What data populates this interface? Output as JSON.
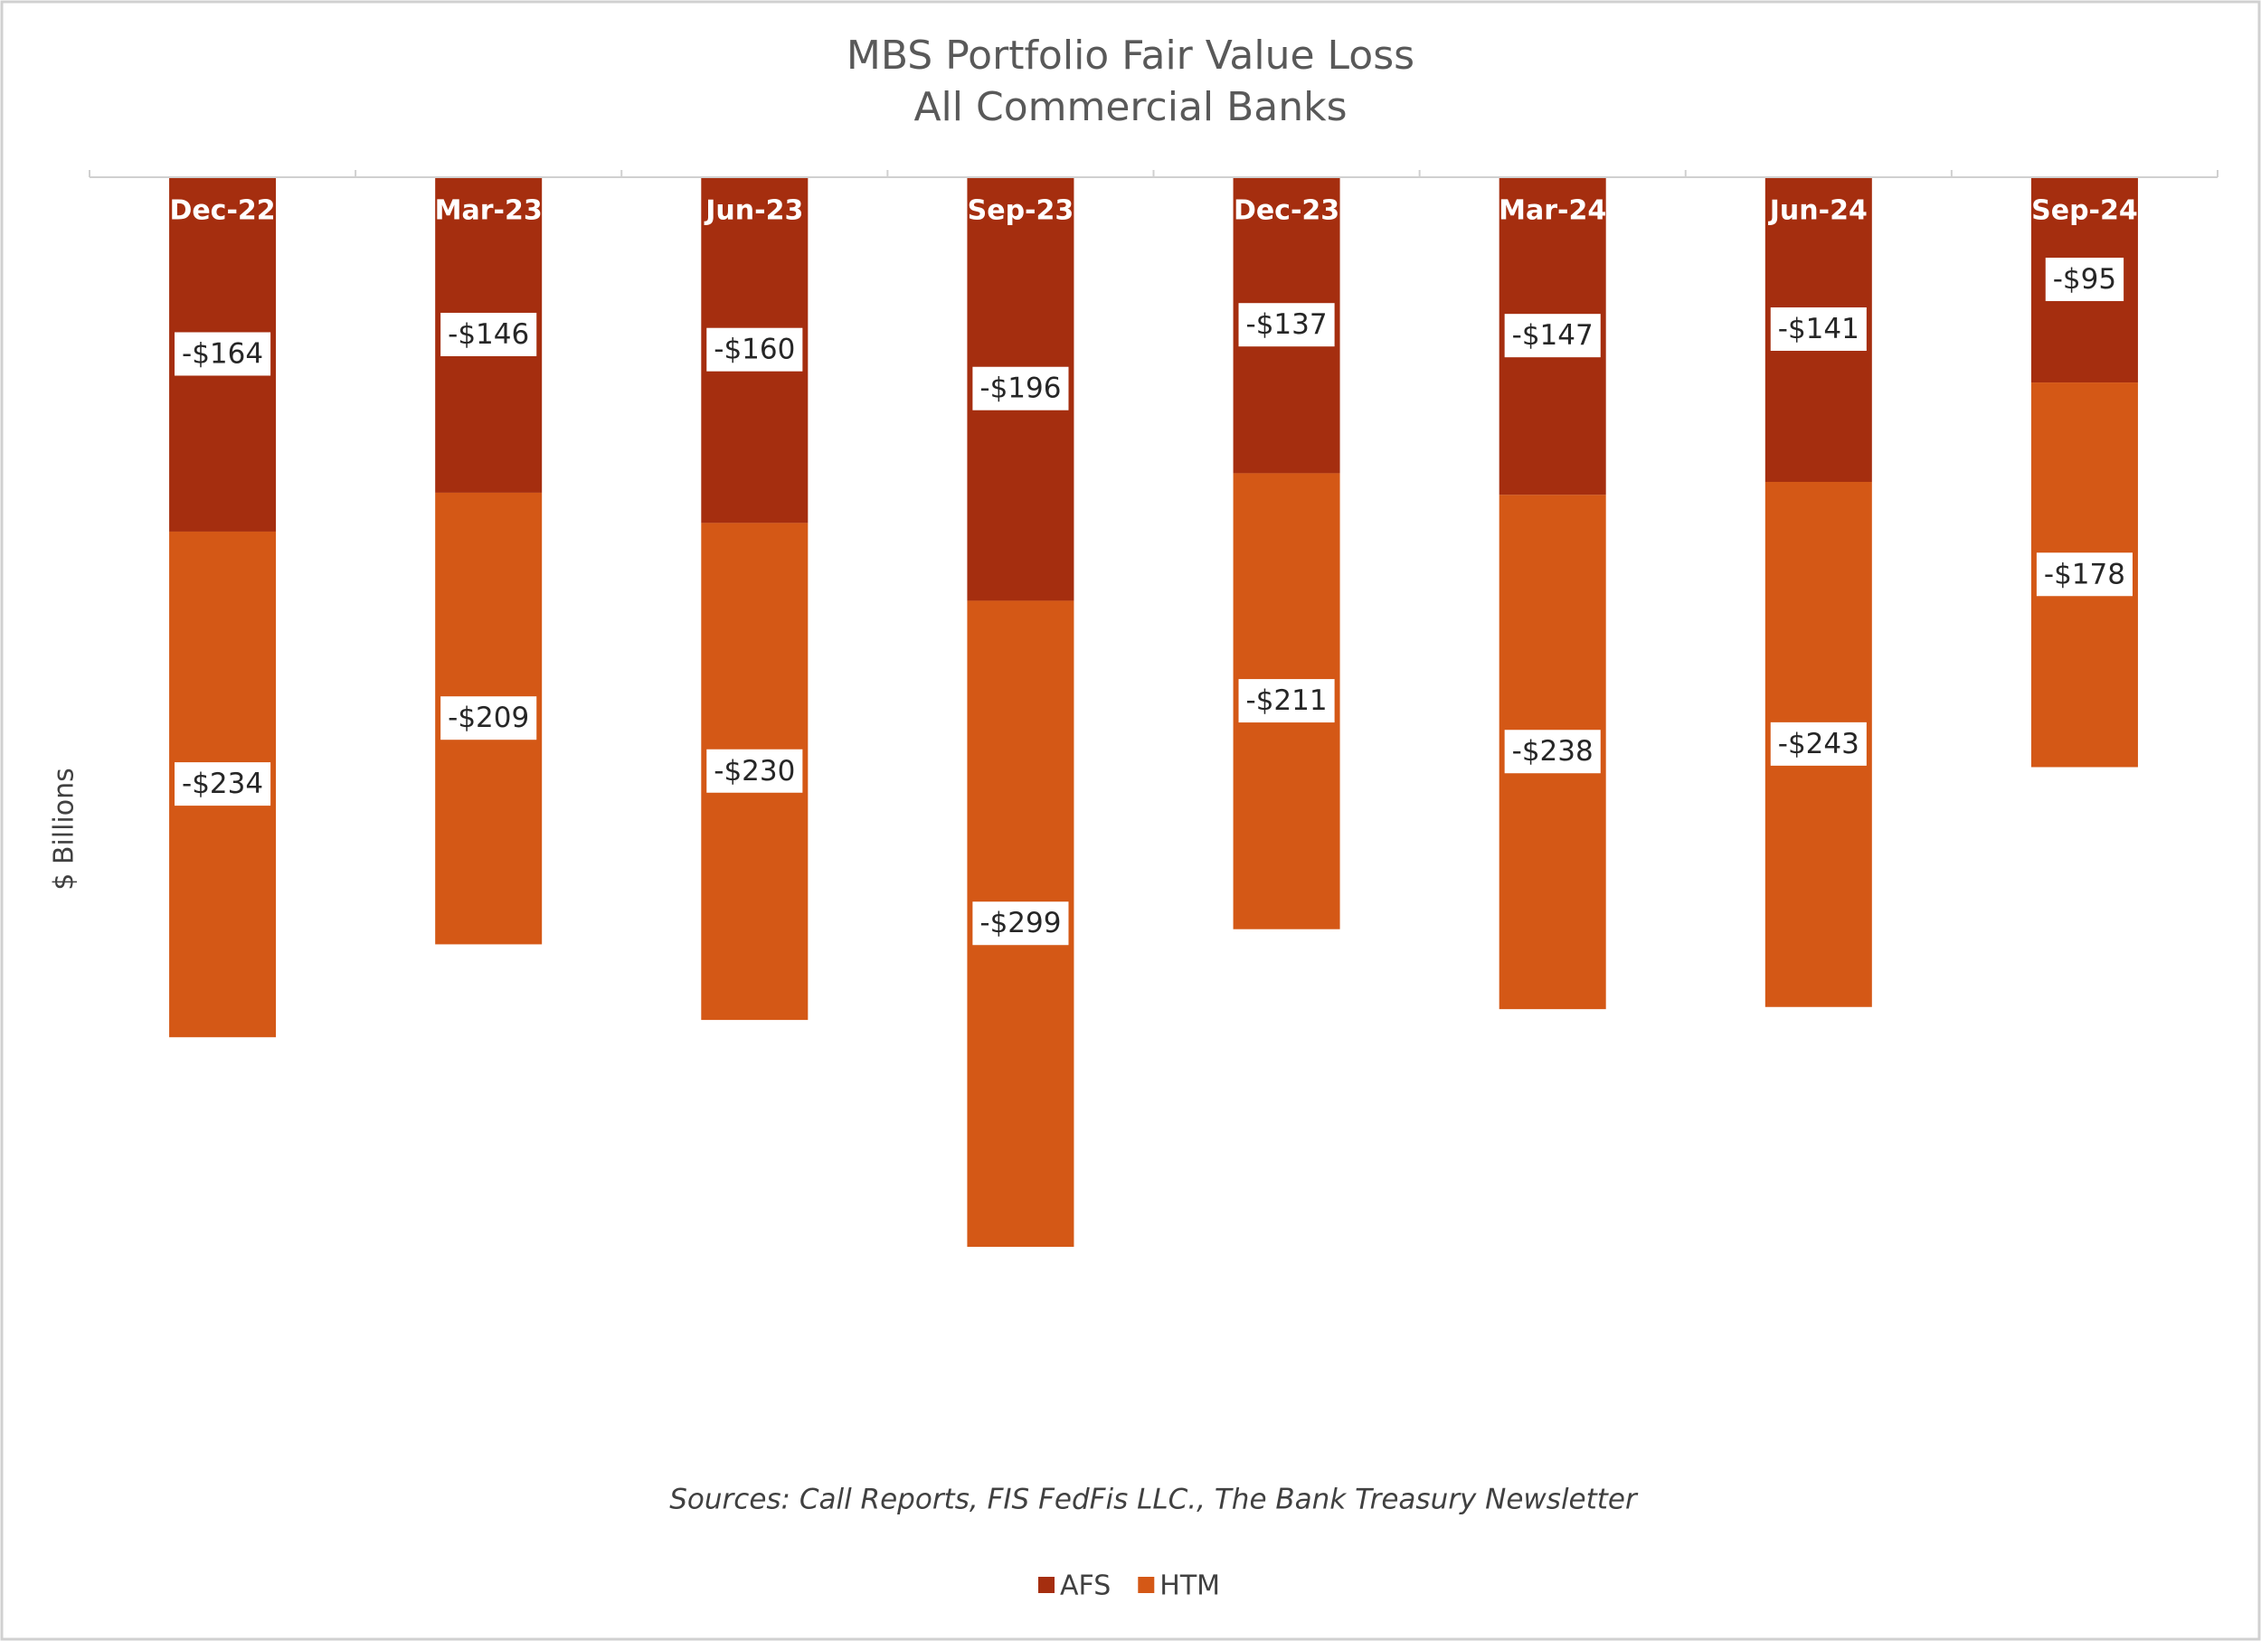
{
  "chart_data": {
    "type": "bar",
    "stacked": true,
    "title": "MBS Portfolio Fair Value Loss",
    "subtitle": "All Commercial Banks",
    "ylabel": "$ Billions",
    "source": "Sources: Call Reports, FIS FedFis LLC., The Bank Treasury Newsletter",
    "categories": [
      "Dec-22",
      "Mar-23",
      "Jun-23",
      "Sep-23",
      "Dec-23",
      "Mar-24",
      "Jun-24",
      "Sep-24"
    ],
    "series": [
      {
        "name": "AFS",
        "color": "#a52e0f",
        "values": [
          -164,
          -146,
          -160,
          -196,
          -137,
          -147,
          -141,
          -95
        ],
        "value_labels": [
          "-$164",
          "-$146",
          "-$160",
          "-$196",
          "-$137",
          "-$147",
          "-$141",
          "-$95"
        ]
      },
      {
        "name": "HTM",
        "color": "#d45816",
        "values": [
          -234,
          -209,
          -230,
          -299,
          -211,
          -238,
          -243,
          -178
        ],
        "value_labels": [
          "-$234",
          "-$209",
          "-$230",
          "-$299",
          "-$211",
          "-$238",
          "-$243",
          "-$178"
        ]
      }
    ],
    "ylim": [
      -600,
      0
    ],
    "legend": "bottom"
  }
}
